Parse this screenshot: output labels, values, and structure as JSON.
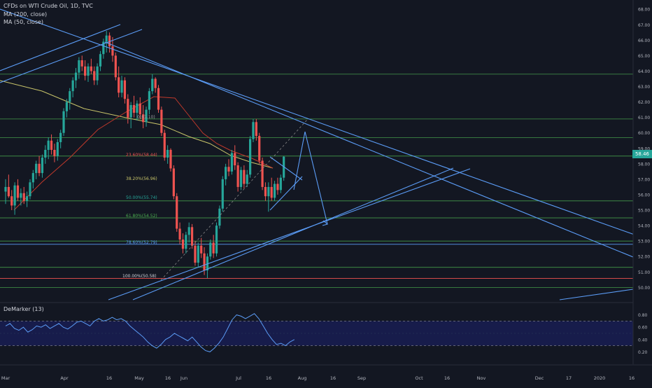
{
  "header": {
    "symbol_title": "CFDs on WTI Crude Oil, 1D, TVC",
    "ma200_label": "MA (200, close)",
    "ma50_label": "MA (50, close)"
  },
  "last_price": "58.46",
  "colors": {
    "background": "#131722",
    "up": "#26a69a",
    "down": "#ef5350",
    "trendline": "#5b9cf6",
    "hline": "#4caf50",
    "ma200": "#c9c56a",
    "ma50": "#c0392b",
    "demarker": "#5b9cf6",
    "demarker_band": "#1a1f5a"
  },
  "fib_labels": {
    "f0": "0(61.10)",
    "f236": "23.60%(58.44)",
    "f382": "38.20%(56.96)",
    "f50": "50.00%(55.74)",
    "f618": "61.80%(54.52)",
    "f786": "78.60%(52.79)",
    "f100": "100.00%(50.58)"
  },
  "chart_data": {
    "type": "candlestick",
    "title": "CFDs on WTI Crude Oil, 1D, TVC",
    "x_axis_labels": [
      "Mar",
      "Apr",
      "16",
      "May",
      "16",
      "Jun",
      "Jul",
      "16",
      "Aug",
      "16",
      "Sep",
      "Oct",
      "16",
      "Nov",
      "Dec",
      "17",
      "2020",
      "16"
    ],
    "y_axis": {
      "ticks": [
        50.0,
        51.0,
        52.0,
        53.0,
        54.0,
        55.0,
        56.0,
        57.0,
        58.0,
        59.0,
        60.0,
        61.0,
        62.0,
        63.0,
        64.0,
        65.0,
        66.0,
        67.0,
        68.0
      ],
      "range": [
        49.2,
        68.6
      ]
    },
    "last_close": 58.46,
    "candles": [
      {
        "o": 56.2,
        "h": 57.0,
        "l": 55.4,
        "c": 56.5
      },
      {
        "o": 56.5,
        "h": 57.3,
        "l": 55.8,
        "c": 55.9
      },
      {
        "o": 55.9,
        "h": 56.3,
        "l": 55.0,
        "c": 55.3
      },
      {
        "o": 55.3,
        "h": 56.8,
        "l": 54.7,
        "c": 56.6
      },
      {
        "o": 56.6,
        "h": 57.0,
        "l": 55.6,
        "c": 55.8
      },
      {
        "o": 55.8,
        "h": 56.4,
        "l": 55.3,
        "c": 56.1
      },
      {
        "o": 56.1,
        "h": 56.5,
        "l": 55.4,
        "c": 55.6
      },
      {
        "o": 55.6,
        "h": 56.2,
        "l": 55.2,
        "c": 55.9
      },
      {
        "o": 55.9,
        "h": 57.0,
        "l": 55.7,
        "c": 56.8
      },
      {
        "o": 56.8,
        "h": 57.6,
        "l": 56.4,
        "c": 57.4
      },
      {
        "o": 57.4,
        "h": 58.2,
        "l": 57.0,
        "c": 58.0
      },
      {
        "o": 58.0,
        "h": 58.5,
        "l": 57.2,
        "c": 57.4
      },
      {
        "o": 57.4,
        "h": 58.6,
        "l": 57.1,
        "c": 58.4
      },
      {
        "o": 58.4,
        "h": 59.2,
        "l": 58.0,
        "c": 58.9
      },
      {
        "o": 58.9,
        "h": 59.7,
        "l": 58.3,
        "c": 59.5
      },
      {
        "o": 59.5,
        "h": 59.9,
        "l": 58.6,
        "c": 58.9
      },
      {
        "o": 58.9,
        "h": 59.3,
        "l": 58.1,
        "c": 58.5
      },
      {
        "o": 58.5,
        "h": 59.6,
        "l": 58.2,
        "c": 59.4
      },
      {
        "o": 59.4,
        "h": 60.2,
        "l": 59.0,
        "c": 60.0
      },
      {
        "o": 60.0,
        "h": 61.6,
        "l": 59.8,
        "c": 61.4
      },
      {
        "o": 61.4,
        "h": 62.2,
        "l": 61.0,
        "c": 62.0
      },
      {
        "o": 62.0,
        "h": 62.9,
        "l": 61.5,
        "c": 62.7
      },
      {
        "o": 62.7,
        "h": 63.6,
        "l": 62.3,
        "c": 63.4
      },
      {
        "o": 63.4,
        "h": 64.2,
        "l": 62.9,
        "c": 63.9
      },
      {
        "o": 63.9,
        "h": 64.9,
        "l": 63.5,
        "c": 64.7
      },
      {
        "o": 64.7,
        "h": 65.0,
        "l": 64.0,
        "c": 64.3
      },
      {
        "o": 64.3,
        "h": 64.7,
        "l": 63.4,
        "c": 63.7
      },
      {
        "o": 63.7,
        "h": 64.5,
        "l": 63.3,
        "c": 64.3
      },
      {
        "o": 64.3,
        "h": 64.8,
        "l": 63.8,
        "c": 64.0
      },
      {
        "o": 64.0,
        "h": 64.3,
        "l": 63.1,
        "c": 63.4
      },
      {
        "o": 63.4,
        "h": 64.5,
        "l": 63.1,
        "c": 64.3
      },
      {
        "o": 64.3,
        "h": 65.3,
        "l": 64.0,
        "c": 65.1
      },
      {
        "o": 65.1,
        "h": 66.1,
        "l": 64.8,
        "c": 65.9
      },
      {
        "o": 65.9,
        "h": 66.6,
        "l": 65.2,
        "c": 66.3
      },
      {
        "o": 66.3,
        "h": 66.5,
        "l": 65.2,
        "c": 65.6
      },
      {
        "o": 65.6,
        "h": 66.2,
        "l": 64.6,
        "c": 65.0
      },
      {
        "o": 65.0,
        "h": 65.2,
        "l": 63.4,
        "c": 63.6
      },
      {
        "o": 63.6,
        "h": 64.3,
        "l": 62.3,
        "c": 62.6
      },
      {
        "o": 62.6,
        "h": 63.7,
        "l": 62.3,
        "c": 63.4
      },
      {
        "o": 63.4,
        "h": 63.6,
        "l": 61.9,
        "c": 62.2
      },
      {
        "o": 62.2,
        "h": 62.5,
        "l": 60.6,
        "c": 61.0
      },
      {
        "o": 61.0,
        "h": 62.0,
        "l": 60.3,
        "c": 61.8
      },
      {
        "o": 61.8,
        "h": 62.4,
        "l": 61.0,
        "c": 61.3
      },
      {
        "o": 61.3,
        "h": 62.1,
        "l": 60.8,
        "c": 61.9
      },
      {
        "o": 61.9,
        "h": 62.3,
        "l": 60.9,
        "c": 61.2
      },
      {
        "o": 61.2,
        "h": 61.8,
        "l": 60.3,
        "c": 60.7
      },
      {
        "o": 60.7,
        "h": 61.7,
        "l": 60.4,
        "c": 61.5
      },
      {
        "o": 61.5,
        "h": 62.9,
        "l": 61.2,
        "c": 62.7
      },
      {
        "o": 62.7,
        "h": 63.8,
        "l": 62.5,
        "c": 63.5
      },
      {
        "o": 63.5,
        "h": 63.6,
        "l": 62.6,
        "c": 62.9
      },
      {
        "o": 62.9,
        "h": 63.1,
        "l": 61.3,
        "c": 61.5
      },
      {
        "o": 61.5,
        "h": 61.7,
        "l": 59.8,
        "c": 60.0
      },
      {
        "o": 60.0,
        "h": 60.2,
        "l": 58.2,
        "c": 58.4
      },
      {
        "o": 58.4,
        "h": 59.2,
        "l": 58.0,
        "c": 58.9
      },
      {
        "o": 58.9,
        "h": 59.0,
        "l": 57.5,
        "c": 57.7
      },
      {
        "o": 57.7,
        "h": 57.9,
        "l": 55.7,
        "c": 55.9
      },
      {
        "o": 55.9,
        "h": 56.1,
        "l": 53.6,
        "c": 53.8
      },
      {
        "o": 53.8,
        "h": 54.2,
        "l": 52.8,
        "c": 53.1
      },
      {
        "o": 53.1,
        "h": 53.5,
        "l": 52.2,
        "c": 52.5
      },
      {
        "o": 52.5,
        "h": 53.6,
        "l": 52.2,
        "c": 53.4
      },
      {
        "o": 53.4,
        "h": 54.2,
        "l": 52.9,
        "c": 53.9
      },
      {
        "o": 53.9,
        "h": 54.1,
        "l": 52.5,
        "c": 52.7
      },
      {
        "o": 52.7,
        "h": 53.0,
        "l": 51.4,
        "c": 51.6
      },
      {
        "o": 51.6,
        "h": 52.9,
        "l": 51.3,
        "c": 52.7
      },
      {
        "o": 52.7,
        "h": 53.2,
        "l": 51.9,
        "c": 52.2
      },
      {
        "o": 52.2,
        "h": 52.6,
        "l": 50.8,
        "c": 51.1
      },
      {
        "o": 51.1,
        "h": 52.2,
        "l": 50.6,
        "c": 52.0
      },
      {
        "o": 52.0,
        "h": 53.1,
        "l": 51.8,
        "c": 52.9
      },
      {
        "o": 52.9,
        "h": 53.4,
        "l": 51.9,
        "c": 52.2
      },
      {
        "o": 52.2,
        "h": 54.2,
        "l": 52.0,
        "c": 54.0
      },
      {
        "o": 54.0,
        "h": 55.3,
        "l": 53.8,
        "c": 55.1
      },
      {
        "o": 55.1,
        "h": 57.2,
        "l": 54.9,
        "c": 57.0
      },
      {
        "o": 57.0,
        "h": 58.0,
        "l": 56.6,
        "c": 57.8
      },
      {
        "o": 57.8,
        "h": 58.3,
        "l": 57.2,
        "c": 57.5
      },
      {
        "o": 57.5,
        "h": 58.9,
        "l": 57.3,
        "c": 58.7
      },
      {
        "o": 58.7,
        "h": 59.2,
        "l": 57.6,
        "c": 57.9
      },
      {
        "o": 57.9,
        "h": 58.1,
        "l": 56.2,
        "c": 56.5
      },
      {
        "o": 56.5,
        "h": 57.8,
        "l": 56.3,
        "c": 57.6
      },
      {
        "o": 57.6,
        "h": 57.9,
        "l": 56.4,
        "c": 56.7
      },
      {
        "o": 56.7,
        "h": 57.6,
        "l": 56.5,
        "c": 57.3
      },
      {
        "o": 57.3,
        "h": 59.8,
        "l": 57.1,
        "c": 59.6
      },
      {
        "o": 59.6,
        "h": 60.9,
        "l": 59.4,
        "c": 60.7
      },
      {
        "o": 60.7,
        "h": 60.9,
        "l": 59.5,
        "c": 59.8
      },
      {
        "o": 59.8,
        "h": 60.0,
        "l": 58.0,
        "c": 58.2
      },
      {
        "o": 58.2,
        "h": 58.4,
        "l": 56.3,
        "c": 56.5
      },
      {
        "o": 56.5,
        "h": 56.8,
        "l": 55.6,
        "c": 55.9
      },
      {
        "o": 55.9,
        "h": 56.8,
        "l": 54.9,
        "c": 56.5
      },
      {
        "o": 56.5,
        "h": 57.1,
        "l": 55.6,
        "c": 55.8
      },
      {
        "o": 55.8,
        "h": 56.9,
        "l": 55.6,
        "c": 56.7
      },
      {
        "o": 56.7,
        "h": 57.1,
        "l": 56.0,
        "c": 56.3
      },
      {
        "o": 56.3,
        "h": 57.3,
        "l": 56.1,
        "c": 57.1
      },
      {
        "o": 57.1,
        "h": 58.5,
        "l": 56.9,
        "c": 58.46
      }
    ],
    "fib_levels": [
      {
        "ratio": 0.0,
        "value": 61.1
      },
      {
        "ratio": 0.236,
        "value": 58.44
      },
      {
        "ratio": 0.382,
        "value": 56.96
      },
      {
        "ratio": 0.5,
        "value": 55.74
      },
      {
        "ratio": 0.618,
        "value": 54.52
      },
      {
        "ratio": 0.786,
        "value": 52.79
      },
      {
        "ratio": 1.0,
        "value": 50.58
      }
    ],
    "horizontal_levels": [
      63.8,
      60.9,
      59.7,
      58.5,
      55.6,
      54.5,
      53.0,
      51.3,
      50.0
    ],
    "demarker": {
      "period": 13,
      "ticks": [
        0.2,
        0.4,
        0.6,
        0.8
      ],
      "upper_band": 0.7,
      "lower_band": 0.3,
      "values": [
        0.62,
        0.66,
        0.58,
        0.55,
        0.6,
        0.52,
        0.56,
        0.62,
        0.6,
        0.64,
        0.58,
        0.62,
        0.66,
        0.6,
        0.57,
        0.62,
        0.68,
        0.7,
        0.66,
        0.62,
        0.7,
        0.74,
        0.7,
        0.72,
        0.76,
        0.72,
        0.74,
        0.7,
        0.62,
        0.56,
        0.5,
        0.44,
        0.36,
        0.3,
        0.26,
        0.32,
        0.4,
        0.44,
        0.5,
        0.46,
        0.42,
        0.38,
        0.44,
        0.36,
        0.28,
        0.22,
        0.2,
        0.26,
        0.34,
        0.44,
        0.58,
        0.72,
        0.8,
        0.78,
        0.74,
        0.78,
        0.82,
        0.74,
        0.62,
        0.5,
        0.4,
        0.32,
        0.34,
        0.3,
        0.36,
        0.4
      ]
    }
  }
}
